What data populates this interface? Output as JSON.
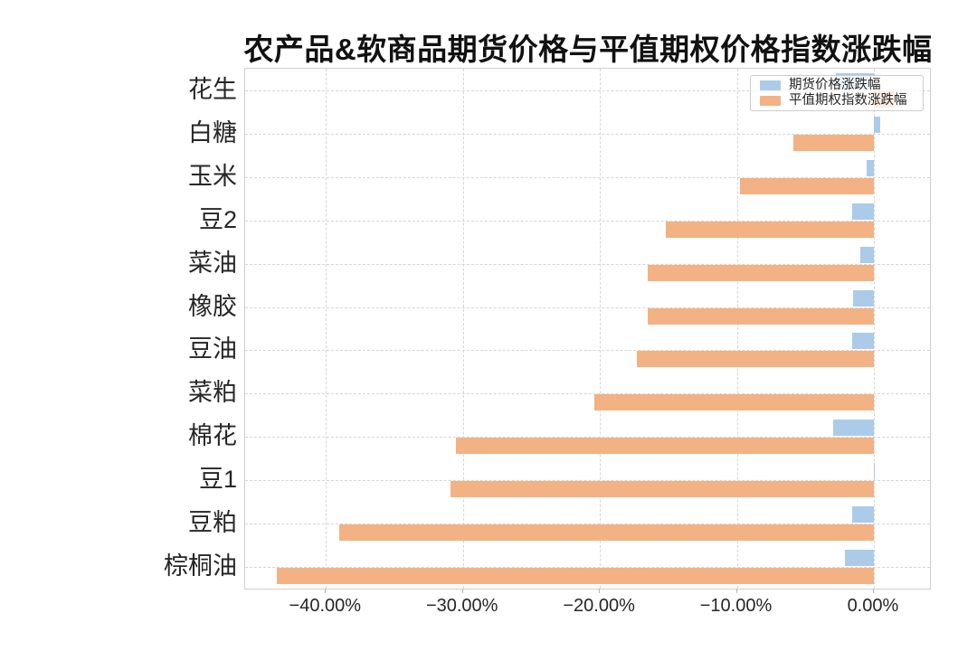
{
  "figure": {
    "title": "农产品&软商品期货价格与平值期权价格指数涨跌幅"
  },
  "legend": {
    "items": [
      {
        "label": "期货价格涨跌幅",
        "color": "#abcbe9"
      },
      {
        "label": "平值期权指数涨跌幅",
        "color": "#f2b284"
      }
    ]
  },
  "chart_data": {
    "type": "bar",
    "orientation": "horizontal",
    "title": "农产品&软商品期货价格与平值期权价格指数涨跌幅",
    "categories": [
      "花生",
      "白糖",
      "玉米",
      "豆2",
      "菜油",
      "橡胶",
      "豆油",
      "菜粕",
      "棉花",
      "豆1",
      "豆粕",
      "棕桐油"
    ],
    "series": [
      {
        "name": "期货价格涨跌幅",
        "color": "#abcbe9",
        "values": [
          -2.8,
          0.5,
          -0.5,
          -1.6,
          -1.0,
          -1.5,
          -1.6,
          0.0,
          -3.0,
          0.1,
          -1.6,
          -2.1
        ]
      },
      {
        "name": "平值期权指数涨跌幅",
        "color": "#f2b284",
        "values": [
          1.5,
          -5.9,
          -9.8,
          -15.2,
          -16.5,
          -16.5,
          -17.3,
          -20.4,
          -30.5,
          -30.9,
          -39.0,
          -43.6
        ]
      }
    ],
    "value_unit": "percent",
    "x_ticks": [
      {
        "value": -40,
        "label": "−40.00%"
      },
      {
        "value": -30,
        "label": "−30.00%"
      },
      {
        "value": -20,
        "label": "−20.00%"
      },
      {
        "value": -10,
        "label": "−10.00%"
      },
      {
        "value": 0,
        "label": "0.00%"
      }
    ],
    "xlim": [
      -45.9,
      4.1
    ],
    "grid": true,
    "legend_position": "upper right"
  },
  "colors": {
    "grid": "#d6d6d6",
    "axis_border": "#d0d0d0",
    "tick": "#b5b5b5",
    "text": "#262626",
    "title": "#111111"
  }
}
